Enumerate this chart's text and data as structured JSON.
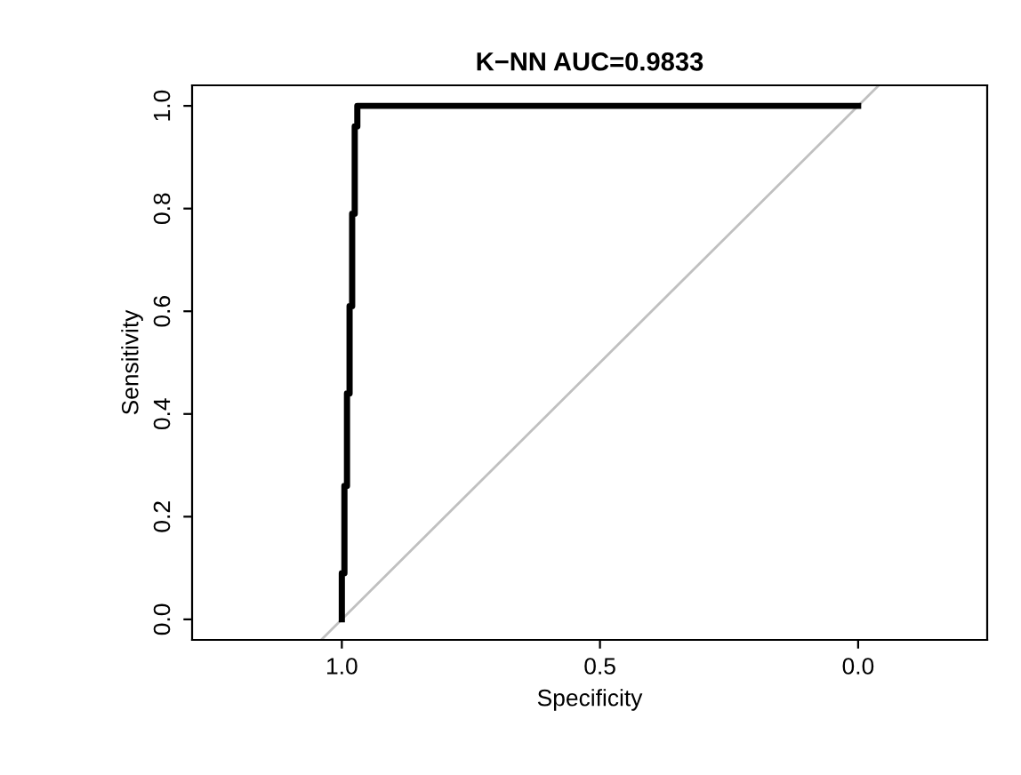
{
  "chart_data": {
    "type": "line",
    "title": "K−NN AUC=0.9833",
    "xlabel": "Specificity",
    "ylabel": "Sensitivity",
    "xlim": [
      1.29,
      -0.25
    ],
    "ylim": [
      -0.04,
      1.04
    ],
    "xticks": [
      {
        "value": 1,
        "label": "1.0"
      },
      0.5,
      {
        "value": 0,
        "label": "0.0"
      }
    ],
    "yticks": [
      {
        "value": 0,
        "label": "0.0"
      },
      0.2,
      0.4,
      0.6,
      0.8,
      {
        "value": 1,
        "label": "1.0"
      }
    ],
    "grid": false,
    "legend": false,
    "marker": "none",
    "line_style": "solid",
    "series": [
      {
        "color": "#c0c0c0",
        "x": [
          1.04,
          -0.04
        ],
        "values": [
          -0.04,
          1.04
        ]
      },
      {
        "color": "#000000",
        "x": [
          1.0,
          1.0,
          0.995,
          0.995,
          0.99,
          0.99,
          0.985,
          0.985,
          0.98,
          0.98,
          0.975,
          0.975,
          0.97,
          0.97,
          0.0
        ],
        "values": [
          0.0,
          0.09,
          0.09,
          0.26,
          0.26,
          0.44,
          0.44,
          0.61,
          0.61,
          0.79,
          0.79,
          0.96,
          0.96,
          1.0,
          1.0
        ]
      }
    ]
  }
}
